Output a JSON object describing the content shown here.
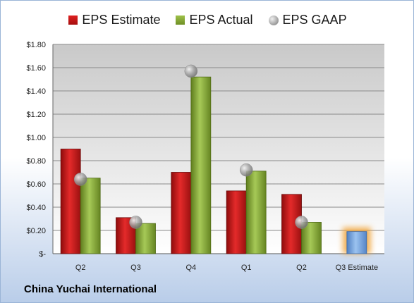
{
  "chart_data": {
    "type": "bar",
    "categories": [
      "Q2",
      "Q3",
      "Q4",
      "Q1",
      "Q2",
      "Q3 Estimate"
    ],
    "series": [
      {
        "name": "EPS Estimate",
        "values": [
          0.9,
          0.31,
          0.7,
          0.54,
          0.51,
          null
        ],
        "color": "#c0161a"
      },
      {
        "name": "EPS Actual",
        "values": [
          0.65,
          0.26,
          1.52,
          0.71,
          0.27,
          null
        ],
        "color": "#8aab3a"
      },
      {
        "name": "EPS GAAP",
        "values": [
          0.64,
          0.27,
          1.57,
          0.72,
          0.27,
          null
        ],
        "color": "#a0a0a0"
      }
    ],
    "forecast": {
      "category": "Q3 Estimate",
      "value": 0.19,
      "color": "#7aa6dd",
      "glow": "#f0a030"
    },
    "ylim": [
      0,
      1.8
    ],
    "y_ticks": [
      {
        "value": 0,
        "label": "$-"
      },
      {
        "value": 0.2,
        "label": "$0.20"
      },
      {
        "value": 0.4,
        "label": "$0.40"
      },
      {
        "value": 0.6,
        "label": "$0.60"
      },
      {
        "value": 0.8,
        "label": "$0.80"
      },
      {
        "value": 1.0,
        "label": "$1.00"
      },
      {
        "value": 1.2,
        "label": "$1.20"
      },
      {
        "value": 1.4,
        "label": "$1.40"
      },
      {
        "value": 1.6,
        "label": "$1.60"
      },
      {
        "value": 1.8,
        "label": "$1.80"
      }
    ],
    "grid": true,
    "legend_position": "top-center"
  },
  "company": "China Yuchai International"
}
